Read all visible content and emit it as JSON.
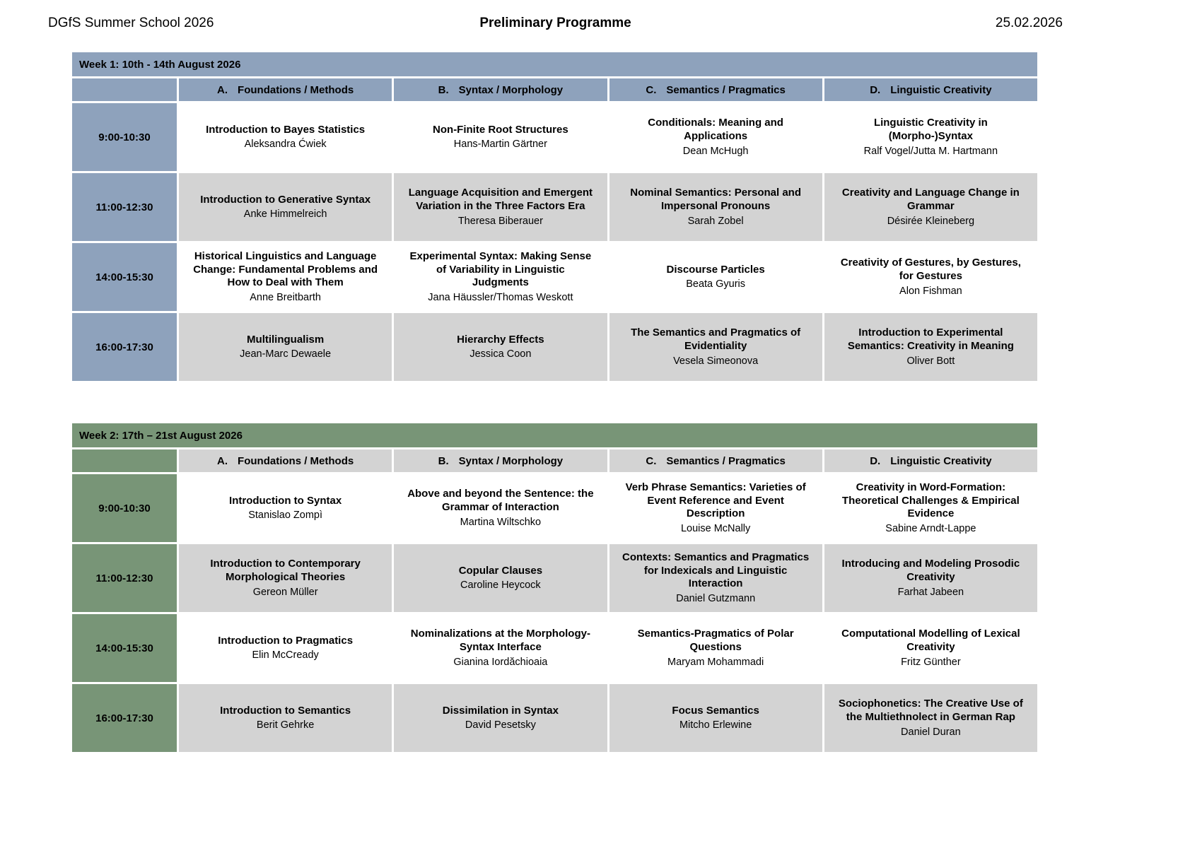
{
  "header": {
    "left": "DGfS Summer School 2026",
    "center": "Preliminary Programme",
    "right": "25.02.2026"
  },
  "columns": [
    {
      "letter": "A.",
      "label": "Foundations / Methods"
    },
    {
      "letter": "B.",
      "label": "Syntax / Morphology"
    },
    {
      "letter": "C.",
      "label": "Semantics / Pragmatics"
    },
    {
      "letter": "D.",
      "label": "Linguistic Creativity"
    }
  ],
  "row_colors": {
    "even": "#ffffff",
    "odd": "#d3d3d3"
  },
  "weeks": [
    {
      "title": "Week 1: 10th - 14th August 2026",
      "accent": "#8ea2bc",
      "column_header_bg": "#8ea2bc",
      "rows": [
        {
          "time": "9:00-10:30",
          "cells": [
            {
              "title": "Introduction to Bayes Statistics",
              "instructor": "Aleksandra Ćwiek"
            },
            {
              "title": "Non-Finite Root Structures",
              "instructor": "Hans-Martin Gärtner"
            },
            {
              "title": "Conditionals: Meaning and Applications",
              "instructor": "Dean McHugh"
            },
            {
              "title": "Linguistic Creativity in (Morpho-)Syntax",
              "instructor": "Ralf Vogel/Jutta M. Hartmann"
            }
          ]
        },
        {
          "time": "11:00-12:30",
          "cells": [
            {
              "title": "Introduction to Generative Syntax",
              "instructor": "Anke Himmelreich"
            },
            {
              "title": "Language Acquisition and Emergent Variation in the Three Factors Era",
              "instructor": "Theresa Biberauer"
            },
            {
              "title": "Nominal Semantics: Personal and Impersonal Pronouns",
              "instructor": "Sarah Zobel"
            },
            {
              "title": "Creativity and Language Change in Grammar",
              "instructor": "Désirée Kleineberg"
            }
          ]
        },
        {
          "time": "14:00-15:30",
          "cells": [
            {
              "title": "Historical Linguistics and Language Change: Fundamental Problems and How to Deal with Them",
              "instructor": "Anne Breitbarth"
            },
            {
              "title": "Experimental Syntax: Making Sense of Variability in Linguistic Judgments",
              "instructor": "Jana Häussler/Thomas Weskott"
            },
            {
              "title": "Discourse Particles",
              "instructor": "Beata Gyuris"
            },
            {
              "title": "Creativity of Gestures, by Gestures, for Gestures",
              "instructor": "Alon Fishman"
            }
          ]
        },
        {
          "time": "16:00-17:30",
          "cells": [
            {
              "title": "Multilingualism",
              "instructor": "Jean-Marc Dewaele"
            },
            {
              "title": "Hierarchy Effects",
              "instructor": "Jessica Coon"
            },
            {
              "title": "The Semantics and Pragmatics of Evidentiality",
              "instructor": "Vesela Simeonova"
            },
            {
              "title": "Introduction to Experimental Semantics: Creativity in Meaning",
              "instructor": "Oliver Bott"
            }
          ]
        }
      ]
    },
    {
      "title": "Week 2: 17th – 21st August 2026",
      "accent": "#789577",
      "column_header_bg": "#d3d3d3",
      "rows": [
        {
          "time": "9:00-10:30",
          "cells": [
            {
              "title": "Introduction to Syntax",
              "instructor": "Stanislao Zompì"
            },
            {
              "title": "Above and beyond the Sentence: the Grammar of Interaction",
              "instructor": "Martina Wiltschko"
            },
            {
              "title": "Verb Phrase Semantics: Varieties of Event Reference and Event Description",
              "instructor": "Louise McNally"
            },
            {
              "title": "Creativity in Word-Formation: Theoretical Challenges & Empirical Evidence",
              "instructor": "Sabine Arndt-Lappe"
            }
          ]
        },
        {
          "time": "11:00-12:30",
          "cells": [
            {
              "title": "Introduction to Contemporary Morphological Theories",
              "instructor": "Gereon Müller"
            },
            {
              "title": "Copular Clauses",
              "instructor": "Caroline Heycock"
            },
            {
              "title": "Contexts: Semantics and Pragmatics for Indexicals and Linguistic Interaction",
              "instructor": "Daniel Gutzmann"
            },
            {
              "title": "Introducing and Modeling Prosodic Creativity",
              "instructor": "Farhat Jabeen"
            }
          ]
        },
        {
          "time": "14:00-15:30",
          "cells": [
            {
              "title": "Introduction to Pragmatics",
              "instructor": "Elin McCready"
            },
            {
              "title": "Nominalizations at the Morphology-Syntax Interface",
              "instructor": "Gianina Iordăchioaia"
            },
            {
              "title": "Semantics-Pragmatics of Polar Questions",
              "instructor": "Maryam Mohammadi"
            },
            {
              "title": "Computational Modelling of Lexical Creativity",
              "instructor": "Fritz Günther"
            }
          ]
        },
        {
          "time": "16:00-17:30",
          "cells": [
            {
              "title": "Introduction to Semantics",
              "instructor": "Berit Gehrke"
            },
            {
              "title": "Dissimilation in Syntax",
              "instructor": "David Pesetsky"
            },
            {
              "title": "Focus Semantics",
              "instructor": "Mitcho Erlewine"
            },
            {
              "title": "Sociophonetics: The Creative Use of the Multiethnolect in German Rap",
              "instructor": "Daniel Duran"
            }
          ]
        }
      ]
    }
  ]
}
